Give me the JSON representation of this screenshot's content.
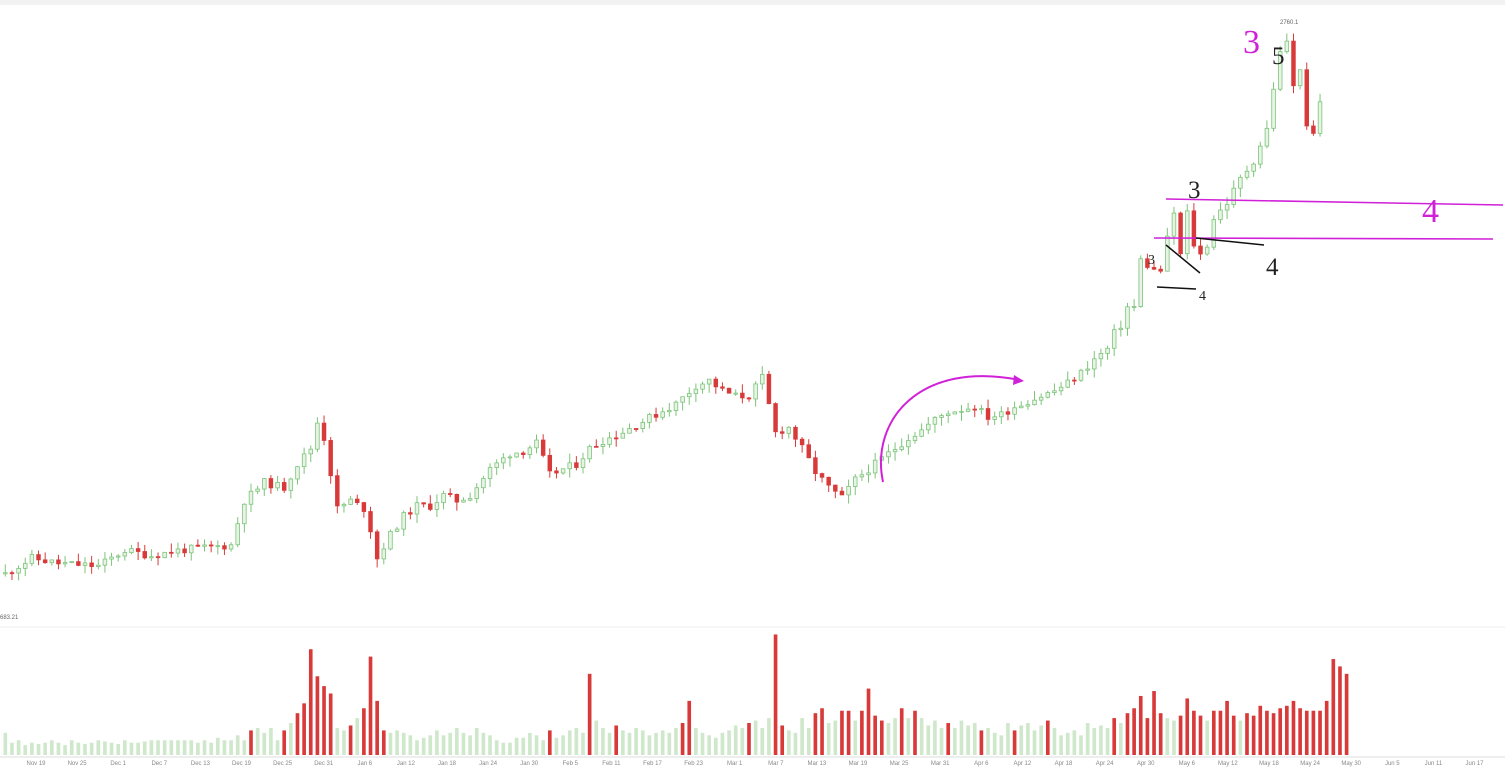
{
  "chart_data": {
    "type": "candlestick",
    "price_high_label": "2760.1",
    "price_low_label": "683.21",
    "price_range": [
      683.21,
      2760.1
    ],
    "volume_panel": true,
    "x_ticks": [
      "Nov 19",
      "Nov 25",
      "Dec 1",
      "Dec 7",
      "Dec 13",
      "Dec 19",
      "Dec 25",
      "Dec 31",
      "Jan 6",
      "Jan 12",
      "Jan 18",
      "Jan 24",
      "Jan 30",
      "Feb 5",
      "Feb 11",
      "Feb 17",
      "Feb 23",
      "Mar 1",
      "Mar 7",
      "Mar 13",
      "Mar 19",
      "Mar 25",
      "Mar 31",
      "Apr 6",
      "Apr 12",
      "Apr 18",
      "Apr 24",
      "Apr 30",
      "May 6",
      "May 12",
      "May 18",
      "May 24",
      "May 30",
      "Jun 5",
      "Jun 11",
      "Jun 17"
    ],
    "colors": {
      "up": "#7cc47a",
      "up_fill": "#e7f4e5",
      "down": "#d83a3a",
      "volume_up": "#cfe8cb",
      "volume_down": "#d83a3a",
      "annotation": "#d020d8",
      "annotation_dark": "#111111"
    },
    "price_path": [
      [
        0,
        700
      ],
      [
        4,
        760
      ],
      [
        8,
        740
      ],
      [
        14,
        730
      ],
      [
        18,
        790
      ],
      [
        22,
        770
      ],
      [
        26,
        790
      ],
      [
        30,
        800
      ],
      [
        34,
        810
      ],
      [
        36,
        980
      ],
      [
        39,
        1050
      ],
      [
        42,
        1030
      ],
      [
        44,
        1120
      ],
      [
        46,
        1180
      ],
      [
        47,
        1280
      ],
      [
        48,
        1220
      ],
      [
        50,
        950
      ],
      [
        52,
        980
      ],
      [
        54,
        950
      ],
      [
        55,
        870
      ],
      [
        56,
        760
      ],
      [
        58,
        850
      ],
      [
        60,
        920
      ],
      [
        62,
        960
      ],
      [
        64,
        960
      ],
      [
        66,
        1000
      ],
      [
        68,
        980
      ],
      [
        70,
        1000
      ],
      [
        73,
        1100
      ],
      [
        76,
        1160
      ],
      [
        78,
        1170
      ],
      [
        80,
        1200
      ],
      [
        82,
        1080
      ],
      [
        84,
        1100
      ],
      [
        86,
        1120
      ],
      [
        88,
        1180
      ],
      [
        90,
        1210
      ],
      [
        92,
        1230
      ],
      [
        95,
        1270
      ],
      [
        98,
        1310
      ],
      [
        101,
        1350
      ],
      [
        104,
        1420
      ],
      [
        106,
        1440
      ],
      [
        108,
        1400
      ],
      [
        110,
        1380
      ],
      [
        112,
        1380
      ],
      [
        114,
        1450
      ],
      [
        116,
        1240
      ],
      [
        118,
        1260
      ],
      [
        120,
        1180
      ],
      [
        122,
        1090
      ],
      [
        124,
        1030
      ],
      [
        126,
        990
      ],
      [
        128,
        1060
      ],
      [
        130,
        1100
      ],
      [
        132,
        1140
      ],
      [
        134,
        1180
      ],
      [
        136,
        1220
      ],
      [
        138,
        1250
      ],
      [
        140,
        1290
      ],
      [
        142,
        1320
      ],
      [
        144,
        1330
      ],
      [
        146,
        1340
      ],
      [
        148,
        1300
      ],
      [
        150,
        1310
      ],
      [
        152,
        1340
      ],
      [
        154,
        1360
      ],
      [
        156,
        1380
      ],
      [
        158,
        1400
      ],
      [
        160,
        1430
      ],
      [
        162,
        1470
      ],
      [
        164,
        1520
      ],
      [
        166,
        1560
      ],
      [
        167,
        1620
      ],
      [
        168,
        1650
      ],
      [
        169,
        1720
      ],
      [
        170,
        1720
      ],
      [
        171,
        1900
      ],
      [
        172,
        1880
      ],
      [
        173,
        1860
      ],
      [
        174,
        1860
      ],
      [
        175,
        1980
      ],
      [
        176,
        2080
      ],
      [
        177,
        1920
      ],
      [
        178,
        2080
      ],
      [
        179,
        1960
      ],
      [
        180,
        1920
      ],
      [
        181,
        1960
      ],
      [
        182,
        2060
      ],
      [
        184,
        2120
      ],
      [
        186,
        2210
      ],
      [
        188,
        2280
      ],
      [
        190,
        2400
      ],
      [
        191,
        2560
      ],
      [
        192,
        2690
      ],
      [
        193,
        2740
      ],
      [
        194,
        2560
      ],
      [
        195,
        2640
      ],
      [
        196,
        2400
      ],
      [
        197,
        2380
      ],
      [
        198,
        2500
      ]
    ],
    "volume": [
      0.18,
      0.1,
      0.12,
      0.08,
      0.1,
      0.09,
      0.1,
      0.12,
      0.1,
      0.08,
      0.12,
      0.1,
      0.09,
      0.1,
      0.12,
      0.11,
      0.1,
      0.09,
      0.12,
      0.1,
      0.1,
      0.11,
      0.12,
      0.12,
      0.12,
      0.12,
      0.12,
      0.12,
      0.12,
      0.1,
      0.12,
      0.1,
      0.14,
      0.12,
      0.12,
      0.16,
      0.12,
      0.2,
      0.22,
      0.18,
      0.22,
      0.12,
      0.2,
      0.26,
      0.34,
      0.42,
      0.86,
      0.64,
      0.56,
      0.5,
      0.22,
      0.2,
      0.24,
      0.3,
      0.38,
      0.8,
      0.44,
      0.2,
      0.18,
      0.2,
      0.18,
      0.16,
      0.12,
      0.14,
      0.16,
      0.2,
      0.16,
      0.18,
      0.22,
      0.18,
      0.16,
      0.22,
      0.18,
      0.16,
      0.12,
      0.1,
      0.1,
      0.14,
      0.14,
      0.18,
      0.16,
      0.12,
      0.2,
      0.14,
      0.16,
      0.2,
      0.22,
      0.18,
      0.66,
      0.28,
      0.22,
      0.18,
      0.24,
      0.2,
      0.18,
      0.22,
      0.2,
      0.16,
      0.18,
      0.2,
      0.18,
      0.22,
      0.26,
      0.44,
      0.22,
      0.18,
      0.16,
      0.14,
      0.18,
      0.2,
      0.24,
      0.22,
      0.26,
      0.28,
      0.22,
      0.3,
      0.98,
      0.24,
      0.2,
      0.18,
      0.3,
      0.22,
      0.34,
      0.38,
      0.26,
      0.28,
      0.36,
      0.36,
      0.28,
      0.36,
      0.54,
      0.32,
      0.28,
      0.26,
      0.3,
      0.38,
      0.3,
      0.36,
      0.3,
      0.24,
      0.28,
      0.22,
      0.26,
      0.22,
      0.28,
      0.24,
      0.26,
      0.2,
      0.22,
      0.18,
      0.16,
      0.26,
      0.2,
      0.24,
      0.26,
      0.2,
      0.24,
      0.28,
      0.22,
      0.16,
      0.18,
      0.2,
      0.16,
      0.26,
      0.22,
      0.24,
      0.22,
      0.3,
      0.26,
      0.34,
      0.38,
      0.48,
      0.3,
      0.52,
      0.34,
      0.3,
      0.28,
      0.32,
      0.46,
      0.36,
      0.32,
      0.28,
      0.36,
      0.36,
      0.44,
      0.32,
      0.28,
      0.34,
      0.32,
      0.4,
      0.36,
      0.34,
      0.38,
      0.4,
      0.44,
      0.38,
      0.36,
      0.36,
      0.36,
      0.44,
      0.78,
      0.72,
      0.66
    ]
  },
  "annotations": {
    "wave_3_major": "3",
    "wave_5": "5",
    "wave_3_mid": "3",
    "wave_4_mid": "4",
    "wave_3_small": "3",
    "wave_4_small": "4",
    "wave_4_major": "4"
  }
}
